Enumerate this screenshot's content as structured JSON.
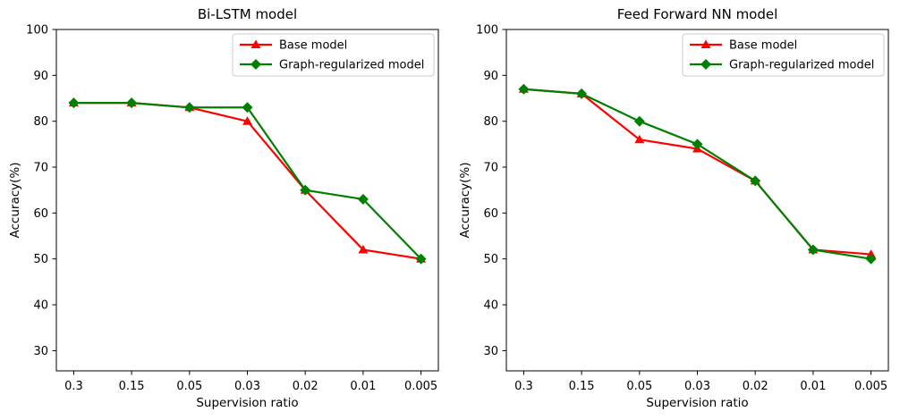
{
  "figure": {
    "background": "#ffffff",
    "text_color": "#000000",
    "frame_color": "#000000",
    "legend_border_color": "#cccccc"
  },
  "chart_data": [
    {
      "type": "line",
      "title": "Bi-LSTM model",
      "xlabel": "Supervision ratio",
      "ylabel": "Accuracy(%)",
      "categories": [
        "0.3",
        "0.15",
        "0.05",
        "0.03",
        "0.02",
        "0.01",
        "0.005"
      ],
      "yticks": [
        100,
        90,
        80,
        70,
        60,
        50,
        40,
        30
      ],
      "ylim": [
        25.6,
        100
      ],
      "grid": false,
      "legend_position": "upper right",
      "series": [
        {
          "name": "Base model",
          "color": "#ff0000",
          "marker": "triangle",
          "values": [
            84,
            84,
            83,
            80,
            65,
            52,
            50
          ]
        },
        {
          "name": "Graph-regularized model",
          "color": "#008000",
          "marker": "diamond",
          "values": [
            84,
            84,
            83,
            83,
            65,
            63,
            50
          ]
        }
      ]
    },
    {
      "type": "line",
      "title": "Feed Forward NN model",
      "xlabel": "Supervision ratio",
      "ylabel": "Accuracy(%)",
      "categories": [
        "0.3",
        "0.15",
        "0.05",
        "0.03",
        "0.02",
        "0.01",
        "0.005"
      ],
      "yticks": [
        100,
        90,
        80,
        70,
        60,
        50,
        40,
        30
      ],
      "ylim": [
        25.6,
        100
      ],
      "grid": false,
      "legend_position": "upper right",
      "series": [
        {
          "name": "Base model",
          "color": "#ff0000",
          "marker": "triangle",
          "values": [
            87,
            86,
            76,
            74,
            67,
            52,
            51
          ]
        },
        {
          "name": "Graph-regularized model",
          "color": "#008000",
          "marker": "diamond",
          "values": [
            87,
            86,
            80,
            75,
            67,
            52,
            50
          ]
        }
      ]
    }
  ]
}
